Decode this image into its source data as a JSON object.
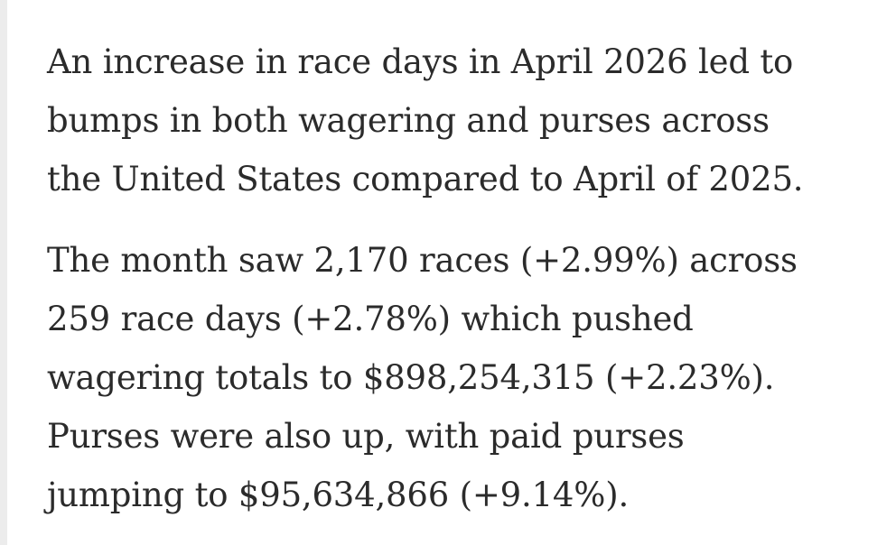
{
  "article": {
    "paragraphs": [
      {
        "lines": [
          "An increase in race days in April 2026 led to",
          "bumps in both wagering and purses across",
          "the United States compared to April of 2025."
        ]
      },
      {
        "lines": [
          "The month saw 2,170 races (+2.99%) across",
          "259 race days (+2.78%) which pushed",
          "wagering totals to $898,254,315 (+2.23%).",
          "Purses were also up, with paid purses",
          "jumping to $95,634,866 (+9.14%)."
        ]
      }
    ]
  }
}
